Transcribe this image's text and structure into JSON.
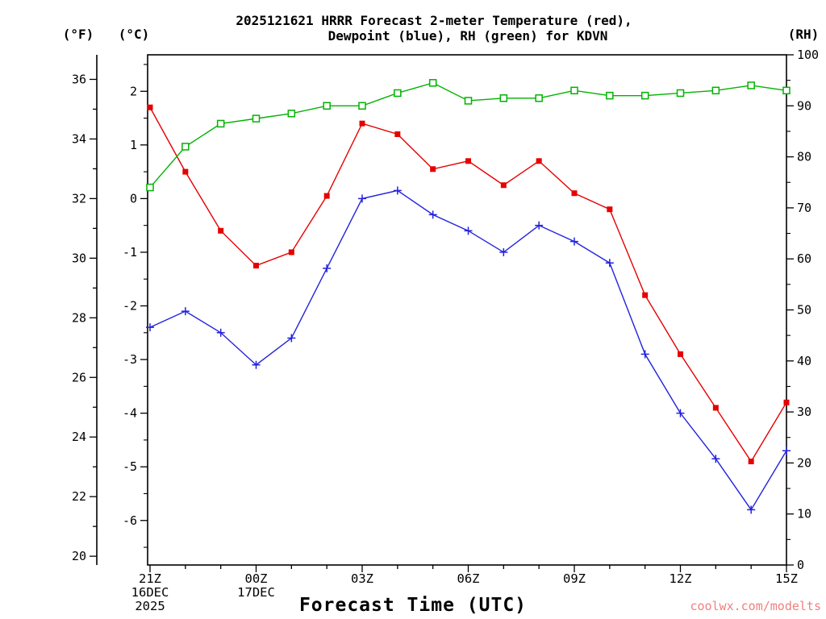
{
  "title": {
    "line1": "2025121621 HRRR Forecast 2-meter Temperature (red),",
    "line2": "Dewpoint (blue), RH (green) for KDVN"
  },
  "axes": {
    "f_label": "(°F)",
    "c_label": "(°C)",
    "rh_label": "(RH)",
    "x_title": "Forecast Time (UTC)",
    "f_ticks": [
      20,
      22,
      24,
      26,
      28,
      30,
      32,
      34,
      36
    ],
    "c_ticks": [
      -6,
      -5,
      -4,
      -3,
      -2,
      -1,
      0,
      1,
      2
    ],
    "rh_ticks": [
      0,
      10,
      20,
      30,
      40,
      50,
      60,
      70,
      80,
      90,
      100
    ],
    "x_ticks": [
      {
        "index": 0,
        "label": "21Z",
        "sub": [
          "16DEC",
          "2025"
        ]
      },
      {
        "index": 3,
        "label": "00Z",
        "sub": [
          "17DEC"
        ]
      },
      {
        "index": 6,
        "label": "03Z",
        "sub": []
      },
      {
        "index": 9,
        "label": "06Z",
        "sub": []
      },
      {
        "index": 12,
        "label": "09Z",
        "sub": []
      },
      {
        "index": 15,
        "label": "12Z",
        "sub": []
      },
      {
        "index": 18,
        "label": "15Z",
        "sub": []
      }
    ]
  },
  "watermark": "coolwx.com/modelts",
  "colors": {
    "temperature": "#e60000",
    "dewpoint": "#2222dd",
    "rh": "#00b300",
    "watermark": "#f08080",
    "axis": "#000000"
  },
  "chart_data": {
    "type": "line",
    "model": "HRRR",
    "run": "2025121621",
    "station": "KDVN",
    "x": [
      "21Z",
      "22Z",
      "23Z",
      "00Z",
      "01Z",
      "02Z",
      "03Z",
      "04Z",
      "05Z",
      "06Z",
      "07Z",
      "08Z",
      "09Z",
      "10Z",
      "11Z",
      "12Z",
      "13Z",
      "14Z",
      "15Z"
    ],
    "series": [
      {
        "key": "temperature",
        "name": "2-meter Temperature",
        "units": "°C",
        "axis": "C",
        "marker": "filled-square",
        "color": "#e60000",
        "values": [
          1.7,
          0.5,
          -0.6,
          -1.25,
          -1.0,
          0.05,
          1.4,
          1.2,
          0.55,
          0.7,
          0.25,
          0.7,
          0.1,
          -0.2,
          -1.8,
          -2.9,
          -3.9,
          -4.9,
          -3.8
        ]
      },
      {
        "key": "dewpoint",
        "name": "Dewpoint",
        "units": "°C",
        "axis": "C",
        "marker": "plus",
        "color": "#2222dd",
        "values": [
          -2.4,
          -2.1,
          -2.5,
          -3.1,
          -2.6,
          -1.3,
          0.0,
          0.15,
          -0.3,
          -0.6,
          -1.0,
          -0.5,
          -0.8,
          -1.2,
          -2.9,
          -4.0,
          -4.85,
          -5.8,
          -4.7
        ]
      },
      {
        "key": "rh",
        "name": "RH",
        "units": "%",
        "axis": "RH",
        "marker": "open-square",
        "color": "#00b300",
        "values": [
          74,
          82,
          86.5,
          87.5,
          88.5,
          90,
          90,
          92.5,
          94.5,
          91,
          91.5,
          91.5,
          93,
          92,
          92,
          92.5,
          93,
          94,
          93
        ]
      }
    ],
    "c_frame_range": [
      -6.83,
      2.68
    ],
    "rh_frame_range": [
      0,
      100
    ],
    "grid": false,
    "legend_position": "in-title"
  }
}
